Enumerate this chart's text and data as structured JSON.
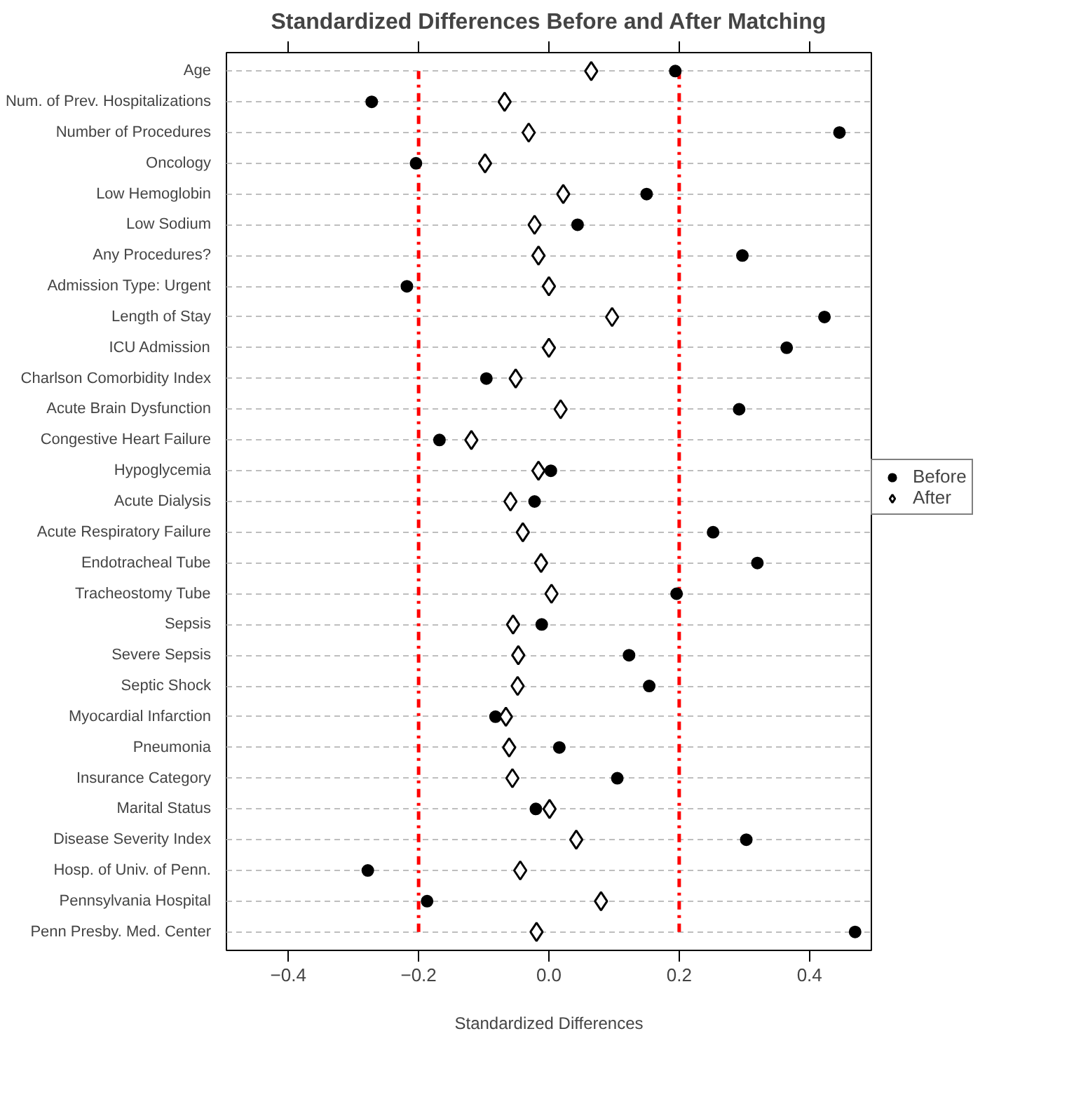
{
  "chart_data": {
    "type": "scatter",
    "title": "Standardized Differences Before and After Matching",
    "xlabel": "Standardized Differences",
    "categories": [
      "Age",
      "Num. of Prev. Hospitalizations",
      "Number of Procedures",
      "Oncology",
      "Low Hemoglobin",
      "Low Sodium",
      "Any Procedures?",
      "Admission Type: Urgent",
      "Length of Stay",
      "ICU Admission",
      "Charlson Comorbidity Index",
      "Acute Brain Dysfunction",
      "Congestive Heart Failure",
      "Hypoglycemia",
      "Acute Dialysis",
      "Acute Respiratory Failure",
      "Endotracheal Tube",
      "Tracheostomy Tube",
      "Sepsis",
      "Severe Sepsis",
      "Septic Shock",
      "Myocardial Infarction",
      "Pneumonia",
      "Insurance Category",
      "Marital Status",
      "Disease Severity Index",
      "Hosp. of Univ. of Penn.",
      "Pennsylvania Hospital",
      "Penn Presby. Med. Center"
    ],
    "series": [
      {
        "name": "Before",
        "color": "#000000",
        "marker": "circle",
        "values": [
          0.194,
          -0.272,
          0.446,
          -0.204,
          0.15,
          0.044,
          0.297,
          -0.218,
          0.423,
          0.365,
          -0.096,
          0.292,
          -0.168,
          0.003,
          -0.022,
          0.252,
          0.32,
          0.196,
          -0.011,
          0.123,
          0.154,
          -0.082,
          0.016,
          0.105,
          -0.02,
          0.303,
          -0.278,
          -0.187,
          0.47
        ]
      },
      {
        "name": "After",
        "color": "#000000",
        "marker": "diamond",
        "values": [
          0.065,
          -0.068,
          -0.031,
          -0.098,
          0.022,
          -0.022,
          -0.016,
          0.0,
          0.097,
          0.0,
          -0.051,
          0.018,
          -0.119,
          -0.016,
          -0.059,
          -0.04,
          -0.012,
          0.004,
          -0.055,
          -0.047,
          -0.048,
          -0.066,
          -0.061,
          -0.056,
          0.001,
          0.042,
          -0.044,
          0.08,
          -0.019
        ]
      }
    ],
    "xlim": [
      -0.495,
      0.495
    ],
    "orientation": "horizontal",
    "xticks": [
      {
        "value": -0.4,
        "label": "−0.4"
      },
      {
        "value": -0.2,
        "label": "−0.2"
      },
      {
        "value": 0,
        "label": "0.0"
      },
      {
        "value": 0.2,
        "label": "0.2"
      },
      {
        "value": 0.4,
        "label": "0.4"
      }
    ],
    "ref_lines": [
      {
        "axis": "x",
        "value": -0.2,
        "color": "#ff0000",
        "line_style": "dashdot"
      },
      {
        "axis": "x",
        "value": 0.2,
        "color": "#ff0000",
        "line_style": "dashdot"
      }
    ],
    "grid": "y",
    "legend": "right"
  }
}
